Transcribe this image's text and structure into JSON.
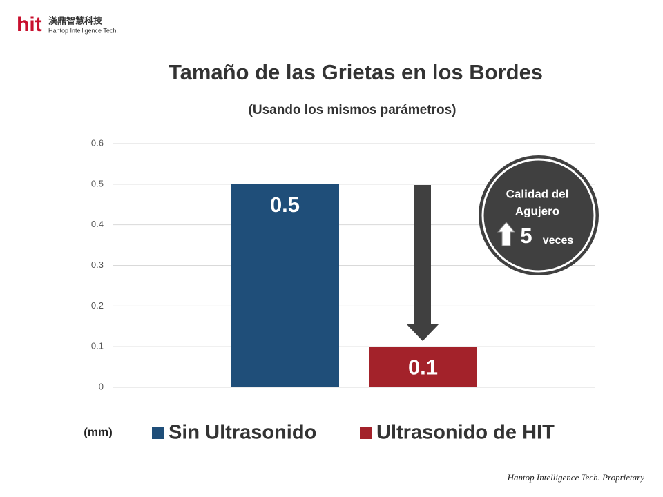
{
  "logo": {
    "brand": "hit",
    "name_zh": "漢鼎智慧科技",
    "name_en": "Hantop Intelligence Tech."
  },
  "chart_data": {
    "type": "bar",
    "title": "Tamaño de las Grietas en los Bordes",
    "subtitle": "(Usando los mismos parámetros)",
    "y_label": "(mm)",
    "categories": [
      null
    ],
    "series": [
      {
        "name": "Sin Ultrasonido",
        "color": "#1f4e79",
        "values": [
          0.5
        ]
      },
      {
        "name": "Ultrasonido de HIT",
        "color": "#a3222a",
        "values": [
          0.1
        ]
      }
    ],
    "ylim": [
      0,
      0.6
    ],
    "yticks": [
      0,
      0.1,
      0.2,
      0.3,
      0.4,
      0.5,
      0.6
    ],
    "grid": true,
    "annotation": {
      "lines": [
        "Calidad del",
        "Agujero"
      ],
      "value": 5,
      "unit": "veces"
    }
  },
  "footer": "Hantop Intelligence Tech. Proprietary"
}
